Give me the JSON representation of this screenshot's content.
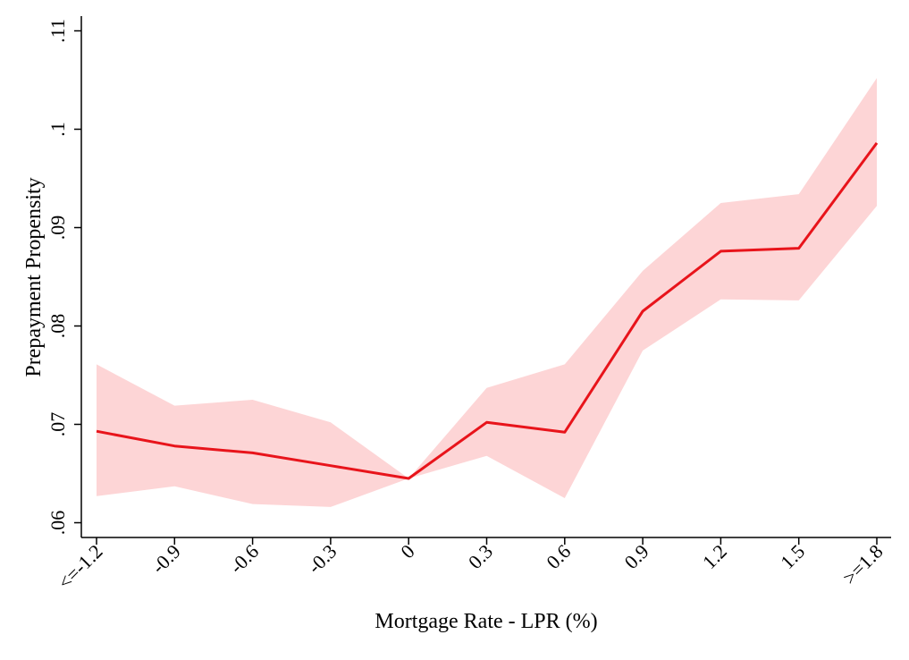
{
  "chart_data": {
    "type": "line",
    "xlabel": "Mortgage Rate - LPR (%)",
    "ylabel": "Prepayment Propensity",
    "categories": [
      "<=-1.2",
      "-0.9",
      "-0.6",
      "-0.3",
      "0",
      "0.3",
      "0.6",
      "0.9",
      "1.2",
      "1.5",
      ">=1.8"
    ],
    "y_ticks": [
      ".06",
      ".07",
      ".08",
      ".09",
      ".1",
      ".11"
    ],
    "y_tick_values": [
      0.06,
      0.07,
      0.08,
      0.09,
      0.1,
      0.11
    ],
    "ylim": [
      0.0585,
      0.1115
    ],
    "grid": false,
    "legend": "none",
    "series": [
      {
        "values": [
          0.0693,
          0.0678,
          0.0671,
          0.0658,
          0.0645,
          0.0702,
          0.0692,
          0.0815,
          0.0876,
          0.0879,
          0.0986
        ],
        "lower": [
          0.0627,
          0.0637,
          0.0619,
          0.0616,
          0.0645,
          0.0668,
          0.0625,
          0.0775,
          0.0827,
          0.0826,
          0.0922
        ],
        "upper": [
          0.0761,
          0.0719,
          0.0725,
          0.0702,
          0.0645,
          0.0737,
          0.0761,
          0.0856,
          0.0925,
          0.0934,
          0.1052
        ]
      }
    ],
    "colors": {
      "line": "#e8141b",
      "band": "#fdd5d6",
      "axis": "#000000"
    }
  }
}
